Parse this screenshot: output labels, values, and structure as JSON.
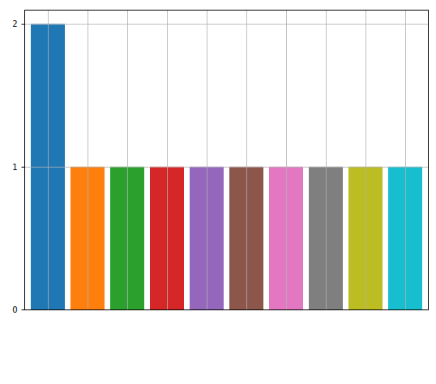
{
  "chart_data": {
    "type": "bar",
    "categories": [
      null,
      null,
      null,
      null,
      null,
      null,
      null,
      null,
      null,
      null
    ],
    "values": [
      2,
      1,
      1,
      1,
      1,
      1,
      1,
      1,
      1,
      1
    ],
    "colors": [
      "#1f77b4",
      "#ff7f0e",
      "#2ca02c",
      "#d62728",
      "#9467bd",
      "#8c564b",
      "#e377c2",
      "#7f7f7f",
      "#bcbd22",
      "#17becf"
    ],
    "ylim": [
      0,
      2.1
    ],
    "yticks": [
      0,
      1,
      2
    ],
    "grid": true,
    "tick_labels": "y"
  }
}
